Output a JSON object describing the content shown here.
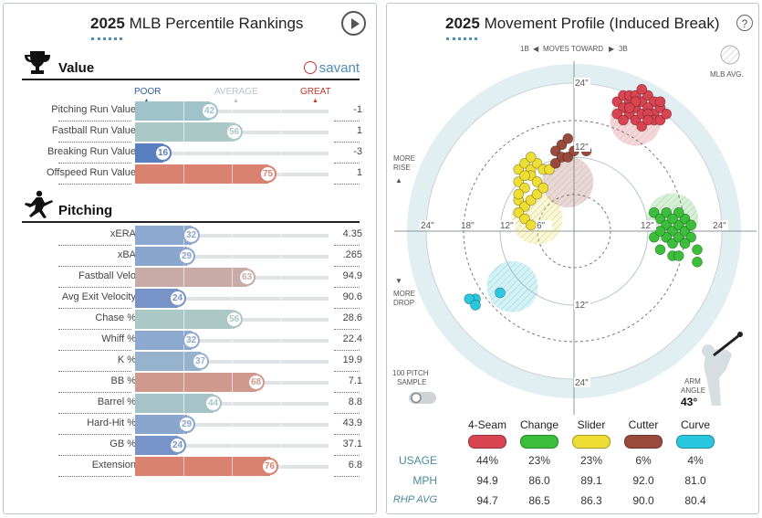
{
  "left": {
    "title_year": "2025",
    "title_text": "MLB Percentile Rankings",
    "value_section": "Value",
    "savant_label": "savant",
    "pitching_section": "Pitching",
    "scale": {
      "poor": "POOR",
      "average": "AVERAGE",
      "great": "GREAT"
    },
    "value_rows": [
      {
        "label": "Pitching Run Value",
        "pct": 42,
        "value": "-1",
        "color": "#9fc3c9"
      },
      {
        "label": "Fastball Run Value",
        "pct": 56,
        "value": "1",
        "color": "#aac9c6"
      },
      {
        "label": "Breaking Run Value",
        "pct": 16,
        "value": "-3",
        "color": "#5a7fc0"
      },
      {
        "label": "Offspeed Run Value",
        "pct": 75,
        "value": "1",
        "color": "#d9826f"
      }
    ],
    "pitching_rows": [
      {
        "label": "xERA",
        "pct": 32,
        "value": "4.35",
        "color": "#8ea9cf"
      },
      {
        "label": "xBA",
        "pct": 29,
        "value": ".265",
        "color": "#8aa6cf"
      },
      {
        "label": "Fastball Velo",
        "pct": 63,
        "value": "94.9",
        "color": "#c8aaa6"
      },
      {
        "label": "Avg Exit Velocity",
        "pct": 24,
        "value": "90.6",
        "color": "#7893c8"
      },
      {
        "label": "Chase %",
        "pct": 56,
        "value": "28.6",
        "color": "#acc8c6"
      },
      {
        "label": "Whiff %",
        "pct": 32,
        "value": "22.4",
        "color": "#8ea9cf"
      },
      {
        "label": "K %",
        "pct": 37,
        "value": "19.9",
        "color": "#97b2cc"
      },
      {
        "label": "BB %",
        "pct": 68,
        "value": "7.1",
        "color": "#cf9a8d"
      },
      {
        "label": "Barrel %",
        "pct": 44,
        "value": "8.8",
        "color": "#a6c4c8"
      },
      {
        "label": "Hard-Hit %",
        "pct": 29,
        "value": "43.9",
        "color": "#8aa6cf"
      },
      {
        "label": "GB %",
        "pct": 24,
        "value": "37.1",
        "color": "#7893c8"
      },
      {
        "label": "Extension",
        "pct": 76,
        "value": "6.8",
        "color": "#d9826f"
      }
    ]
  },
  "right": {
    "title_year": "2025",
    "title_text": "Movement Profile (Induced Break)",
    "help": "?",
    "moves_toward": {
      "left": "1B",
      "mid": "MOVES TOWARD",
      "right": "3B"
    },
    "mlb_avg": "MLB AVG.",
    "more_rise": [
      "MORE",
      "RISE"
    ],
    "more_drop": [
      "MORE",
      "DROP"
    ],
    "ring_labels": [
      "24\"",
      "18\"",
      "12\"",
      "6\"",
      "12\"",
      "24\"",
      "24\"",
      "12\"",
      "12\"",
      "24\""
    ],
    "sample_label": [
      "100 PITCH",
      "SAMPLE"
    ],
    "arm_angle_label": [
      "ARM",
      "ANGLE"
    ],
    "arm_angle_value": "43°",
    "pitches": [
      {
        "name": "4-Seam",
        "color": "#d94452",
        "usage": "44%",
        "mph": "94.9",
        "rhp": "94.7"
      },
      {
        "name": "Change",
        "color": "#3bbf3b",
        "usage": "23%",
        "mph": "86.0",
        "rhp": "86.5"
      },
      {
        "name": "Slider",
        "color": "#eedd33",
        "usage": "23%",
        "mph": "89.1",
        "rhp": "86.3"
      },
      {
        "name": "Cutter",
        "color": "#9a4a3c",
        "usage": "6%",
        "mph": "92.0",
        "rhp": "90.0"
      },
      {
        "name": "Curve",
        "color": "#29c8e0",
        "usage": "4%",
        "mph": "81.0",
        "rhp": "80.4"
      }
    ],
    "row_labels": {
      "usage": "USAGE",
      "mph": "MPH",
      "rhp": "RHP AVG"
    },
    "chart_data": {
      "type": "scatter",
      "x_unit": "inches horizontal break (positive toward 3B)",
      "y_unit": "inches induced vertical break",
      "xlim": [
        -24,
        24
      ],
      "ylim": [
        -24,
        24
      ],
      "series": [
        {
          "name": "4-Seam",
          "avg": [
            10,
            18
          ],
          "points": [
            [
              7,
              21
            ],
            [
              8,
              22
            ],
            [
              9,
              21
            ],
            [
              10,
              20
            ],
            [
              11,
              21
            ],
            [
              12,
              22
            ],
            [
              13,
              21
            ],
            [
              8,
              20
            ],
            [
              9,
              19
            ],
            [
              10,
              18
            ],
            [
              11,
              19
            ],
            [
              12,
              20
            ],
            [
              13,
              19
            ],
            [
              14,
              20
            ],
            [
              9,
              22
            ],
            [
              10,
              22
            ],
            [
              11,
              23
            ],
            [
              12,
              19
            ],
            [
              13,
              18
            ],
            [
              14,
              18
            ],
            [
              7,
              19
            ],
            [
              8,
              18
            ],
            [
              11,
              17
            ],
            [
              12,
              18
            ],
            [
              15,
              19
            ],
            [
              10,
              21
            ],
            [
              14,
              21
            ],
            [
              9,
              20
            ]
          ]
        },
        {
          "name": "Change",
          "avg": [
            16,
            2
          ],
          "points": [
            [
              13,
              3
            ],
            [
              14,
              2
            ],
            [
              15,
              1
            ],
            [
              16,
              0
            ],
            [
              17,
              1
            ],
            [
              18,
              2
            ],
            [
              15,
              -1
            ],
            [
              16,
              -2
            ],
            [
              17,
              -1
            ],
            [
              18,
              0
            ],
            [
              14,
              -3
            ],
            [
              16,
              -4
            ],
            [
              19,
              -1
            ],
            [
              20,
              -3
            ],
            [
              17,
              3
            ],
            [
              15,
              3
            ],
            [
              18,
              -2
            ],
            [
              13,
              -1
            ],
            [
              16,
              2
            ],
            [
              19,
              1
            ],
            [
              20,
              -5
            ],
            [
              17,
              -4
            ],
            [
              14,
              0
            ]
          ]
        },
        {
          "name": "Slider",
          "avg": [
            -6,
            2
          ],
          "points": [
            [
              -9,
              10
            ],
            [
              -8,
              11
            ],
            [
              -7,
              10
            ],
            [
              -6,
              11
            ],
            [
              -5,
              10
            ],
            [
              -9,
              8
            ],
            [
              -8,
              7
            ],
            [
              -7,
              9
            ],
            [
              -6,
              8
            ],
            [
              -9,
              5
            ],
            [
              -8,
              4
            ],
            [
              -7,
              5
            ],
            [
              -9,
              3
            ],
            [
              -8,
              2
            ],
            [
              -7,
              1
            ],
            [
              -9,
              6
            ],
            [
              -6,
              6
            ],
            [
              -5,
              7
            ],
            [
              -8,
              9
            ],
            [
              -4,
              10
            ],
            [
              -7,
              12
            ]
          ]
        },
        {
          "name": "Cutter",
          "avg": [
            -1,
            8
          ],
          "points": [
            [
              -2,
              14
            ],
            [
              -1,
              15
            ],
            [
              -3,
              13
            ],
            [
              -2,
              12
            ],
            [
              -3,
              11
            ],
            [
              -1,
              12
            ],
            [
              0,
              13
            ],
            [
              2,
              13
            ]
          ]
        },
        {
          "name": "Curve",
          "avg": [
            -10,
            -9
          ],
          "points": [
            [
              -16,
              -11
            ],
            [
              -17,
              -11
            ],
            [
              -16,
              -12
            ],
            [
              -12,
              -10
            ]
          ]
        }
      ]
    }
  }
}
